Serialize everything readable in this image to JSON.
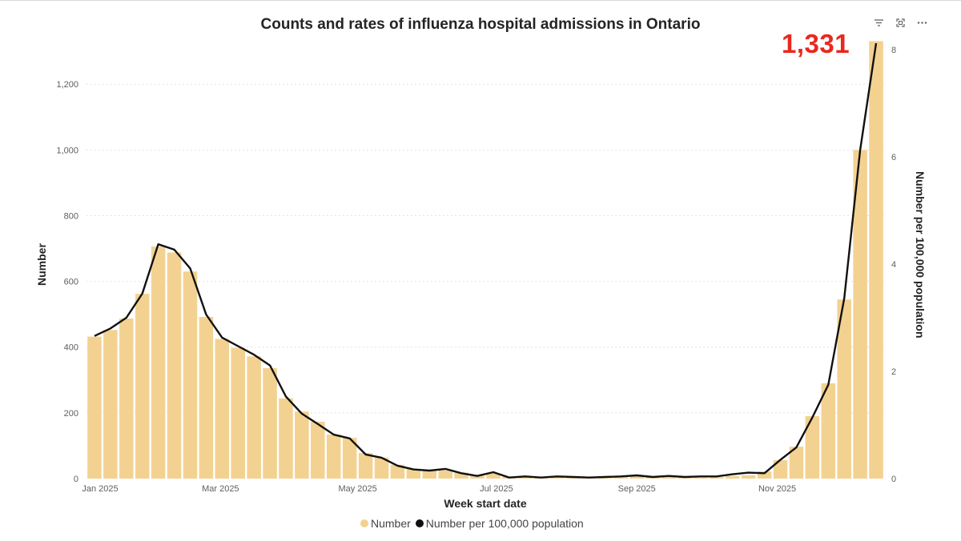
{
  "annotation": {
    "value_label": "1,331"
  },
  "colors": {
    "bar": "#f3d291",
    "line": "#111111",
    "grid": "#e4e4e4",
    "callout": "#e8281e"
  },
  "icons": [
    "filter-icon",
    "expand-icon",
    "more-options-icon"
  ],
  "chart_data": {
    "type": "bar",
    "title": "Counts and rates of influenza hospital admissions in Ontario",
    "xlabel": "Week start date",
    "ylabel": "Number",
    "y2label": "Number per 100,000 population",
    "ylim": [
      0,
      1315
    ],
    "y2lim": [
      0,
      8.06
    ],
    "yticks": [
      0,
      200,
      400,
      600,
      800,
      1000,
      1200
    ],
    "ytick_labels": [
      "0",
      "200",
      "400",
      "600",
      "800",
      "1,000",
      "1,200"
    ],
    "y2ticks": [
      0,
      2,
      4,
      6,
      8
    ],
    "y2tick_labels": [
      "0",
      "2",
      "4",
      "6",
      "8"
    ],
    "xtick_labels": [
      {
        "label": "Jan 2025",
        "week_index": 0
      },
      {
        "label": "Mar 2025",
        "week_index": 8.4
      },
      {
        "label": "May 2025",
        "week_index": 17
      },
      {
        "label": "Jul 2025",
        "week_index": 25.7
      },
      {
        "label": "Sep 2025",
        "week_index": 34.5
      },
      {
        "label": "Nov 2025",
        "week_index": 43.3
      }
    ],
    "grid": true,
    "legend_position": "bottom",
    "series": [
      {
        "name": "Number",
        "type": "bar",
        "axis": "left",
        "values": [
          432,
          452,
          487,
          562,
          706,
          688,
          630,
          492,
          425,
          398,
          372,
          336,
          244,
          204,
          173,
          134,
          124,
          78,
          64,
          42,
          29,
          23,
          25,
          18,
          9,
          16,
          6,
          7,
          5,
          6,
          5,
          4,
          3,
          5,
          9,
          6,
          5,
          4,
          3,
          4,
          8,
          10,
          22,
          56,
          97,
          190,
          290,
          545,
          1000,
          1331
        ]
      },
      {
        "name": "Number per 100,000 population",
        "type": "line",
        "axis": "right",
        "values": [
          2.66,
          2.8,
          3.0,
          3.45,
          4.37,
          4.27,
          3.92,
          3.06,
          2.63,
          2.47,
          2.31,
          2.11,
          1.53,
          1.21,
          1.02,
          0.82,
          0.75,
          0.45,
          0.39,
          0.24,
          0.17,
          0.15,
          0.18,
          0.1,
          0.05,
          0.12,
          0.02,
          0.04,
          0.02,
          0.04,
          0.03,
          0.02,
          0.03,
          0.04,
          0.06,
          0.03,
          0.05,
          0.03,
          0.04,
          0.04,
          0.08,
          0.11,
          0.1,
          0.35,
          0.58,
          1.14,
          1.75,
          3.36,
          6.13,
          8.12
        ]
      }
    ]
  }
}
